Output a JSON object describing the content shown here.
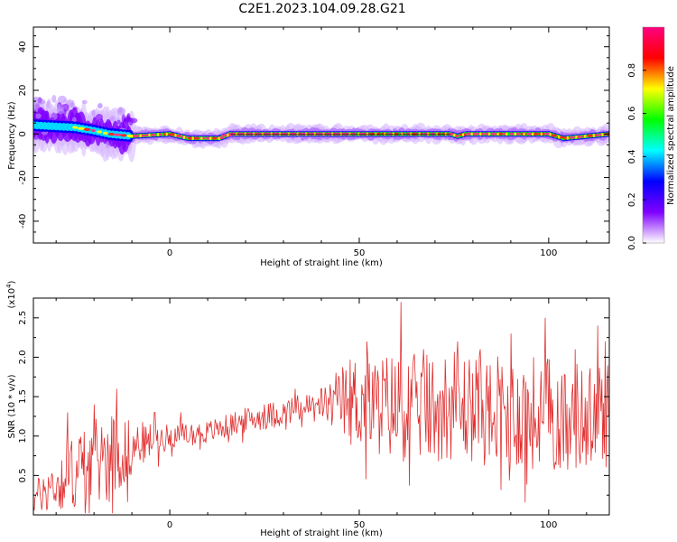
{
  "title": "C2E1.2023.104.09.28.G21",
  "chart_data": [
    {
      "type": "heatmap",
      "xlabel": "Height of straight line (km)",
      "ylabel": "Frequency (Hz)",
      "xlim": [
        -36,
        116
      ],
      "ylim": [
        -50,
        49
      ],
      "xticks": [
        0,
        50,
        100
      ],
      "yticks": [
        -40,
        -20,
        0,
        20,
        40
      ],
      "colorbar": {
        "label": "Normalized spectral amplitude",
        "range": [
          0,
          1
        ],
        "ticks": [
          "0.0",
          "0.2",
          "0.4",
          "0.6",
          "0.8"
        ],
        "colors": [
          "#ffffff",
          "#7f00ff",
          "#0000ff",
          "#00ffff",
          "#00ff00",
          "#ffff00",
          "#ff0000",
          "#ff0080"
        ]
      },
      "ridge": [
        [
          -36,
          4
        ],
        [
          -25,
          3
        ],
        [
          -20,
          1.5
        ],
        [
          -16,
          0
        ],
        [
          -10,
          -1
        ],
        [
          0,
          0
        ],
        [
          5,
          -2
        ],
        [
          13,
          -2
        ],
        [
          16,
          0
        ],
        [
          48,
          0
        ],
        [
          60,
          0
        ],
        [
          74,
          0
        ],
        [
          76,
          -1
        ],
        [
          78,
          0
        ],
        [
          100,
          0
        ],
        [
          104,
          -2
        ],
        [
          110,
          -1
        ],
        [
          116,
          0
        ]
      ]
    },
    {
      "type": "line",
      "xlabel": "Height of straight line (km)",
      "ylabel": "SNR (10 * v/v)",
      "multiplier": "(x10^4)",
      "xlim": [
        -36,
        116
      ],
      "ylim": [
        0,
        2.75
      ],
      "xticks": [
        0,
        50,
        100
      ],
      "yticks": [
        0.5,
        1.0,
        1.5,
        2.0,
        2.5
      ],
      "series": [
        {
          "color": "#e03030",
          "trend": [
            [
              -36,
              0.2
            ],
            [
              -30,
              0.4
            ],
            [
              -20,
              0.7
            ],
            [
              -12,
              0.8
            ],
            [
              -8,
              0.9
            ],
            [
              0,
              1.0
            ],
            [
              10,
              1.05
            ],
            [
              20,
              1.2
            ],
            [
              30,
              1.3
            ],
            [
              40,
              1.4
            ],
            [
              47,
              1.45
            ],
            [
              55,
              1.4
            ],
            [
              65,
              1.35
            ],
            [
              75,
              1.4
            ],
            [
              85,
              1.3
            ],
            [
              95,
              1.3
            ],
            [
              105,
              1.25
            ],
            [
              116,
              1.25
            ]
          ],
          "spread": [
            [
              -36,
              0.2
            ],
            [
              -25,
              0.5
            ],
            [
              -15,
              0.6
            ],
            [
              -9,
              0.3
            ],
            [
              0,
              0.15
            ],
            [
              15,
              0.15
            ],
            [
              40,
              0.2
            ],
            [
              48,
              0.6
            ],
            [
              60,
              0.7
            ],
            [
              80,
              0.7
            ],
            [
              100,
              0.75
            ],
            [
              116,
              0.7
            ]
          ],
          "peaks": [
            [
              -27,
              1.3
            ],
            [
              -20,
              1.4
            ],
            [
              -14,
              1.6
            ],
            [
              -11,
              1.2
            ],
            [
              -4,
              1.3
            ],
            [
              3,
              1.3
            ],
            [
              25,
              1.4
            ],
            [
              33,
              1.6
            ],
            [
              40,
              1.6
            ],
            [
              45,
              1.5
            ],
            [
              52,
              2.2
            ],
            [
              61,
              2.7
            ],
            [
              67,
              2.1
            ],
            [
              76,
              2.2
            ],
            [
              82,
              2.1
            ],
            [
              90,
              2.3
            ],
            [
              99,
              2.5
            ],
            [
              107,
              2.1
            ],
            [
              113,
              2.4
            ],
            [
              115,
              2.2
            ]
          ]
        }
      ]
    }
  ]
}
